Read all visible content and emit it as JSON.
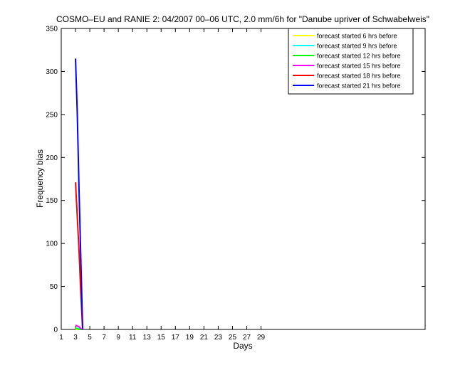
{
  "chart_data": {
    "type": "line",
    "title": "COSMO–EU and RANIE 2: 04/2007 00–06 UTC, 2.0 mm/6h for \"Danube upriver of Schwabelweis\"",
    "xlabel": "Days",
    "ylabel": "Frequency bias",
    "x": [
      3,
      3.25,
      3.5,
      3.75,
      4
    ],
    "series": [
      {
        "name": "forecast started 6 hrs before",
        "color": "#ffff00",
        "values": [
          0,
          0,
          0,
          0,
          0
        ]
      },
      {
        "name": "forecast started 9 hrs before",
        "color": "#00ffff",
        "values": [
          2,
          1,
          1,
          0,
          0
        ]
      },
      {
        "name": "forecast started 12 hrs before",
        "color": "#00ff00",
        "values": [
          1,
          1,
          0,
          0,
          0
        ]
      },
      {
        "name": "forecast started 15 hrs before",
        "color": "#ff00ff",
        "values": [
          5,
          4,
          3,
          1,
          0
        ]
      },
      {
        "name": "forecast started 18 hrs before",
        "color": "#ff0000",
        "values": [
          171,
          130,
          90,
          40,
          0
        ]
      },
      {
        "name": "forecast started 21 hrs before",
        "color": "#0000ff",
        "values": [
          315,
          250,
          160,
          80,
          0
        ]
      }
    ],
    "xlim": [
      1,
      52
    ],
    "xticks": [
      1,
      3,
      5,
      7,
      9,
      11,
      13,
      15,
      17,
      19,
      21,
      23,
      25,
      27,
      29
    ],
    "ylim": [
      0,
      350
    ],
    "yticks": [
      0,
      50,
      100,
      150,
      200,
      250,
      300,
      350
    ],
    "legend": "upper right"
  }
}
